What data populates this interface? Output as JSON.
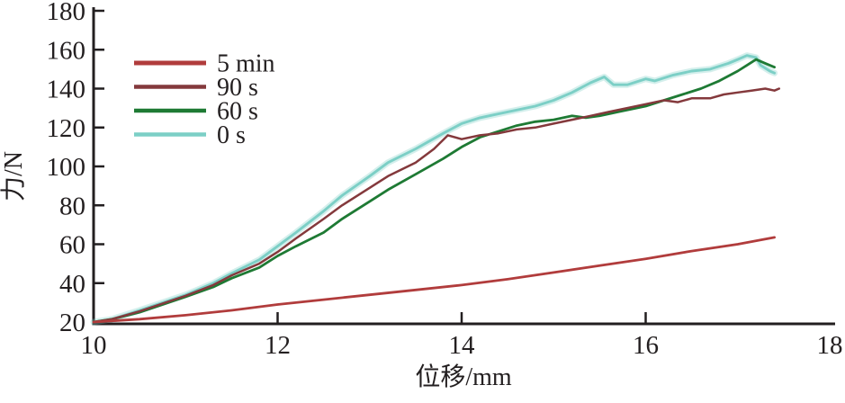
{
  "figure": {
    "background": "#ffffff",
    "axis_color": "#231f20",
    "text_color": "#231f20"
  },
  "chart_data": {
    "type": "line",
    "title": "",
    "xlabel": "位移/mm",
    "ylabel": "力/N",
    "xlim": [
      10,
      18
    ],
    "ylim": [
      20,
      180
    ],
    "xticks": [
      10,
      12,
      14,
      16,
      18
    ],
    "yticks": [
      20,
      40,
      60,
      80,
      100,
      120,
      140,
      160,
      180
    ],
    "grid": false,
    "legend_position": "upper-left",
    "series": [
      {
        "name": "5 min",
        "color": "#b13c3c",
        "width": 2.8,
        "halo": false,
        "points": [
          [
            10,
            20
          ],
          [
            10.5,
            21.5
          ],
          [
            11,
            23.5
          ],
          [
            11.5,
            26
          ],
          [
            12,
            29
          ],
          [
            12.5,
            31.5
          ],
          [
            13,
            34
          ],
          [
            13.5,
            36.5
          ],
          [
            14,
            39
          ],
          [
            14.5,
            42
          ],
          [
            15,
            45.5
          ],
          [
            15.5,
            49
          ],
          [
            16,
            52.5
          ],
          [
            16.5,
            56.5
          ],
          [
            17,
            60
          ],
          [
            17.4,
            63.5
          ]
        ]
      },
      {
        "name": "90 s",
        "color": "#84393c",
        "width": 2.5,
        "halo": false,
        "points": [
          [
            10,
            20
          ],
          [
            10.2,
            21.5
          ],
          [
            10.5,
            25.5
          ],
          [
            11,
            33.5
          ],
          [
            11.3,
            39
          ],
          [
            11.5,
            44
          ],
          [
            11.8,
            50
          ],
          [
            12,
            56
          ],
          [
            12.2,
            63
          ],
          [
            12.5,
            73
          ],
          [
            12.7,
            80
          ],
          [
            13,
            89
          ],
          [
            13.2,
            95
          ],
          [
            13.5,
            102
          ],
          [
            13.7,
            109
          ],
          [
            13.85,
            116
          ],
          [
            14,
            114
          ],
          [
            14.2,
            116
          ],
          [
            14.4,
            117
          ],
          [
            14.6,
            119
          ],
          [
            14.8,
            120
          ],
          [
            15,
            122
          ],
          [
            15.2,
            124
          ],
          [
            15.4,
            126
          ],
          [
            15.6,
            128
          ],
          [
            15.8,
            130
          ],
          [
            16,
            132
          ],
          [
            16.2,
            134
          ],
          [
            16.35,
            133
          ],
          [
            16.5,
            135
          ],
          [
            16.7,
            135
          ],
          [
            16.85,
            137
          ],
          [
            17,
            138
          ],
          [
            17.15,
            139
          ],
          [
            17.3,
            140
          ],
          [
            17.4,
            139
          ],
          [
            17.45,
            140
          ]
        ]
      },
      {
        "name": "60 s",
        "color": "#1e7a34",
        "width": 2.8,
        "halo": false,
        "points": [
          [
            10,
            20
          ],
          [
            10.2,
            21.5
          ],
          [
            10.5,
            25
          ],
          [
            11,
            33
          ],
          [
            11.3,
            38
          ],
          [
            11.5,
            42.5
          ],
          [
            11.8,
            48
          ],
          [
            12,
            54
          ],
          [
            12.2,
            59
          ],
          [
            12.5,
            66
          ],
          [
            12.7,
            73
          ],
          [
            13,
            82
          ],
          [
            13.2,
            88
          ],
          [
            13.5,
            96
          ],
          [
            13.8,
            104
          ],
          [
            14,
            110
          ],
          [
            14.2,
            115
          ],
          [
            14.4,
            118
          ],
          [
            14.6,
            121
          ],
          [
            14.8,
            123
          ],
          [
            15,
            124
          ],
          [
            15.2,
            126
          ],
          [
            15.35,
            125
          ],
          [
            15.5,
            126
          ],
          [
            15.7,
            128
          ],
          [
            15.9,
            130
          ],
          [
            16,
            131
          ],
          [
            16.2,
            134
          ],
          [
            16.4,
            137
          ],
          [
            16.6,
            140
          ],
          [
            16.8,
            144
          ],
          [
            17,
            149
          ],
          [
            17.1,
            152
          ],
          [
            17.2,
            155
          ],
          [
            17.3,
            153
          ],
          [
            17.4,
            151
          ]
        ]
      },
      {
        "name": "0 s",
        "color": "#7ccfc6",
        "width": 2.9,
        "halo": true,
        "points": [
          [
            10,
            20
          ],
          [
            10.2,
            21.5
          ],
          [
            10.5,
            26
          ],
          [
            11,
            34
          ],
          [
            11.3,
            40
          ],
          [
            11.5,
            45
          ],
          [
            11.8,
            52
          ],
          [
            12,
            59
          ],
          [
            12.2,
            66
          ],
          [
            12.5,
            77
          ],
          [
            12.7,
            85
          ],
          [
            13,
            95
          ],
          [
            13.2,
            102
          ],
          [
            13.5,
            109
          ],
          [
            13.8,
            117
          ],
          [
            14,
            122
          ],
          [
            14.2,
            125
          ],
          [
            14.5,
            128
          ],
          [
            14.8,
            131
          ],
          [
            15,
            134
          ],
          [
            15.2,
            138
          ],
          [
            15.4,
            143
          ],
          [
            15.55,
            146
          ],
          [
            15.65,
            142
          ],
          [
            15.8,
            142
          ],
          [
            16,
            145
          ],
          [
            16.1,
            144
          ],
          [
            16.3,
            147
          ],
          [
            16.5,
            149
          ],
          [
            16.7,
            150
          ],
          [
            16.9,
            153
          ],
          [
            17,
            155
          ],
          [
            17.1,
            157
          ],
          [
            17.2,
            156
          ],
          [
            17.25,
            152
          ],
          [
            17.35,
            149
          ],
          [
            17.4,
            148
          ]
        ]
      }
    ]
  }
}
